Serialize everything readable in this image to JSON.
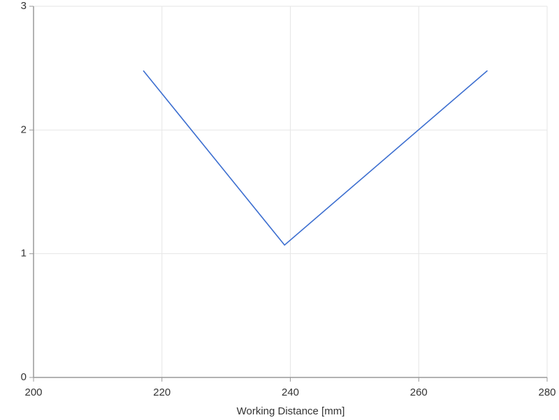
{
  "chart_data": {
    "type": "line",
    "x_label": "Working Distance [mm]",
    "x": [
      217.1,
      239.1,
      270.7
    ],
    "series": [
      {
        "color": "#3d6fd0",
        "values": [
          2.48,
          1.07,
          2.48
        ]
      }
    ],
    "xlim": [
      200,
      280
    ],
    "xticks": [
      200,
      220,
      240,
      260,
      280
    ],
    "ylim": [
      0,
      3
    ],
    "yticks": [
      0,
      1,
      2,
      3
    ],
    "grid": true
  }
}
